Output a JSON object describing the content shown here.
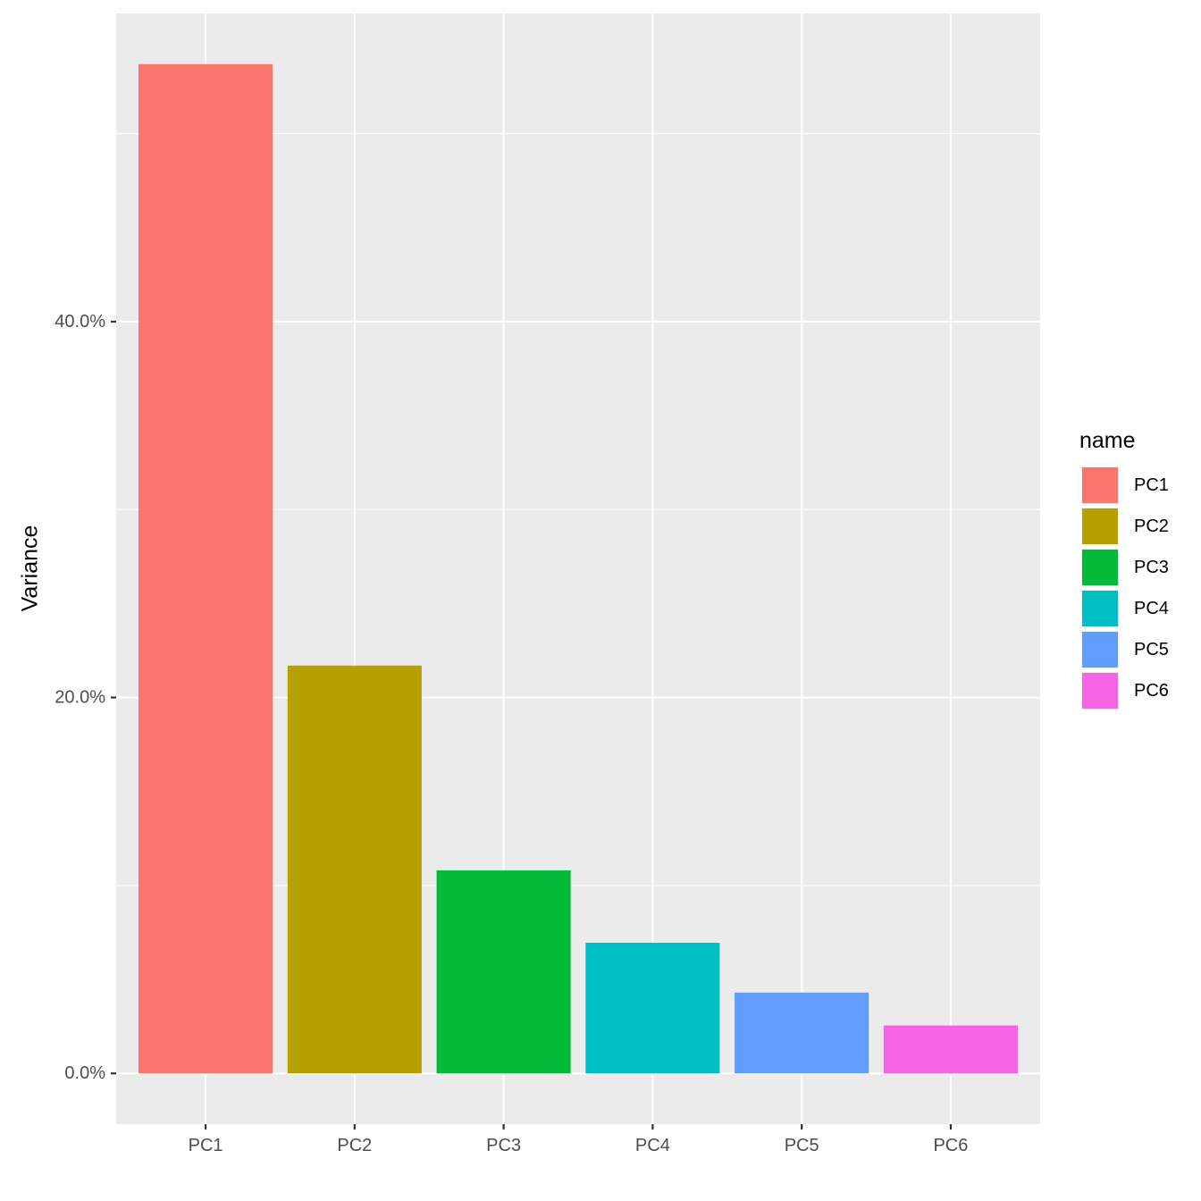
{
  "chart_data": {
    "type": "bar",
    "categories": [
      "PC1",
      "PC2",
      "PC3",
      "PC4",
      "PC5",
      "PC6"
    ],
    "values": [
      53.7,
      21.7,
      10.8,
      6.95,
      4.3,
      2.55
    ],
    "colors": [
      "#F8766D",
      "#B79F00",
      "#00BA38",
      "#00BFC4",
      "#619CFF",
      "#F564E3"
    ],
    "xlabel": "",
    "ylabel": "Variance",
    "yticks": [
      "0.0%",
      "20.0%",
      "40.0%"
    ],
    "ytick_values": [
      0,
      20,
      40
    ],
    "ylim": [
      -2.7,
      56.4
    ],
    "grid": true,
    "legend": {
      "title": "name",
      "position": "right",
      "entries": [
        "PC1",
        "PC2",
        "PC3",
        "PC4",
        "PC5",
        "PC6"
      ]
    }
  }
}
